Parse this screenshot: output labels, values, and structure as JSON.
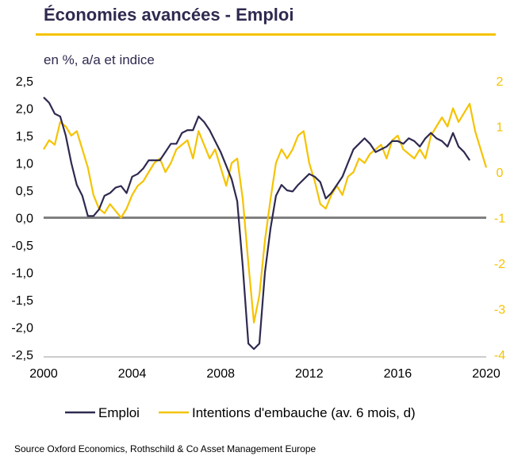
{
  "header": {
    "title": "Économies avancées - Emploi",
    "subtitle": "en %, a/a et indice"
  },
  "footer": {
    "source": "Source Oxford Economics, Rothschild & Co Asset Management Europe"
  },
  "colors": {
    "title": "#2e2a4f",
    "emploi": "#2e2a4f",
    "intentions": "#f5c300",
    "zero_line": "#808080"
  },
  "chart_data": {
    "type": "line",
    "title": "Économies avancées - Emploi",
    "subtitle": "en %, a/a et indice",
    "xlim": [
      2000,
      2020
    ],
    "x_ticks": [
      "2000",
      "2004",
      "2008",
      "2012",
      "2016",
      "2020"
    ],
    "y_left": {
      "lim": [
        -2.5,
        2.5
      ],
      "ticks": [
        "2,5",
        "2,0",
        "1,5",
        "1,0",
        "0,5",
        "0,0",
        "-0,5",
        "-1,0",
        "-1,5",
        "-2,0",
        "-2,5"
      ]
    },
    "y_right": {
      "lim": [
        -4,
        2
      ],
      "ticks": [
        "2",
        "1",
        "0",
        "-1",
        "-2",
        "-3",
        "-4"
      ]
    },
    "legend_position": "bottom",
    "series": [
      {
        "name": "Emploi",
        "axis": "left",
        "color": "#2e2a4f",
        "x": [
          2000.0,
          2000.25,
          2000.5,
          2000.75,
          2001.0,
          2001.25,
          2001.5,
          2001.75,
          2002.0,
          2002.25,
          2002.5,
          2002.75,
          2003.0,
          2003.25,
          2003.5,
          2003.75,
          2004.0,
          2004.25,
          2004.5,
          2004.75,
          2005.0,
          2005.25,
          2005.5,
          2005.75,
          2006.0,
          2006.25,
          2006.5,
          2006.75,
          2007.0,
          2007.25,
          2007.5,
          2007.75,
          2008.0,
          2008.25,
          2008.5,
          2008.75,
          2009.0,
          2009.25,
          2009.5,
          2009.75,
          2010.0,
          2010.25,
          2010.5,
          2010.75,
          2011.0,
          2011.25,
          2011.5,
          2011.75,
          2012.0,
          2012.25,
          2012.5,
          2012.75,
          2013.0,
          2013.25,
          2013.5,
          2013.75,
          2014.0,
          2014.25,
          2014.5,
          2014.75,
          2015.0,
          2015.25,
          2015.5,
          2015.75,
          2016.0,
          2016.25,
          2016.5,
          2016.75,
          2017.0,
          2017.25,
          2017.5,
          2017.75,
          2018.0,
          2018.25,
          2018.5,
          2018.75,
          2019.0,
          2019.25
        ],
        "y": [
          2.2,
          2.1,
          1.9,
          1.85,
          1.5,
          1.0,
          0.6,
          0.4,
          0.03,
          0.03,
          0.15,
          0.4,
          0.45,
          0.55,
          0.58,
          0.45,
          0.75,
          0.8,
          0.9,
          1.05,
          1.05,
          1.05,
          1.2,
          1.35,
          1.35,
          1.55,
          1.6,
          1.6,
          1.85,
          1.75,
          1.6,
          1.4,
          1.2,
          0.95,
          0.7,
          0.3,
          -0.9,
          -2.3,
          -2.4,
          -2.3,
          -1.0,
          -0.2,
          0.4,
          0.6,
          0.5,
          0.48,
          0.6,
          0.7,
          0.8,
          0.75,
          0.65,
          0.35,
          0.45,
          0.6,
          0.75,
          1.0,
          1.25,
          1.35,
          1.45,
          1.35,
          1.2,
          1.25,
          1.3,
          1.4,
          1.4,
          1.35,
          1.45,
          1.4,
          1.3,
          1.45,
          1.55,
          1.45,
          1.4,
          1.3,
          1.55,
          1.3,
          1.2,
          1.05
        ]
      },
      {
        "name": "Intentions d'embauche (av. 6 mois, d)",
        "axis": "right",
        "color": "#f5c300",
        "x": [
          2000.0,
          2000.25,
          2000.5,
          2000.75,
          2001.0,
          2001.25,
          2001.5,
          2001.75,
          2002.0,
          2002.25,
          2002.5,
          2002.75,
          2003.0,
          2003.25,
          2003.5,
          2003.75,
          2004.0,
          2004.25,
          2004.5,
          2004.75,
          2005.0,
          2005.25,
          2005.5,
          2005.75,
          2006.0,
          2006.25,
          2006.5,
          2006.75,
          2007.0,
          2007.25,
          2007.5,
          2007.75,
          2008.0,
          2008.25,
          2008.5,
          2008.75,
          2009.0,
          2009.25,
          2009.5,
          2009.75,
          2010.0,
          2010.25,
          2010.5,
          2010.75,
          2011.0,
          2011.25,
          2011.5,
          2011.75,
          2012.0,
          2012.25,
          2012.5,
          2012.75,
          2013.0,
          2013.25,
          2013.5,
          2013.75,
          2014.0,
          2014.25,
          2014.5,
          2014.75,
          2015.0,
          2015.25,
          2015.5,
          2015.75,
          2016.0,
          2016.25,
          2016.5,
          2016.75,
          2017.0,
          2017.25,
          2017.5,
          2017.75,
          2018.0,
          2018.25,
          2018.5,
          2018.75,
          2019.0,
          2019.25,
          2019.5,
          2019.75,
          2020.0
        ],
        "y": [
          0.5,
          0.7,
          0.6,
          1.1,
          1.0,
          0.8,
          0.9,
          0.5,
          0.1,
          -0.5,
          -0.8,
          -0.9,
          -0.7,
          -0.85,
          -1.0,
          -0.8,
          -0.5,
          -0.3,
          -0.2,
          0.0,
          0.2,
          0.3,
          0.0,
          0.2,
          0.5,
          0.6,
          0.7,
          0.3,
          0.9,
          0.6,
          0.3,
          0.5,
          0.1,
          -0.3,
          0.2,
          0.3,
          -0.6,
          -2.0,
          -3.3,
          -2.7,
          -1.5,
          -0.6,
          0.2,
          0.5,
          0.3,
          0.5,
          0.8,
          0.9,
          0.2,
          -0.2,
          -0.7,
          -0.8,
          -0.5,
          -0.3,
          -0.5,
          -0.1,
          0.0,
          0.3,
          0.2,
          0.4,
          0.5,
          0.6,
          0.3,
          0.7,
          0.8,
          0.5,
          0.4,
          0.3,
          0.5,
          0.3,
          0.8,
          1.0,
          1.2,
          1.0,
          1.4,
          1.1,
          1.3,
          1.5,
          0.9,
          0.5,
          0.1
        ]
      }
    ]
  }
}
